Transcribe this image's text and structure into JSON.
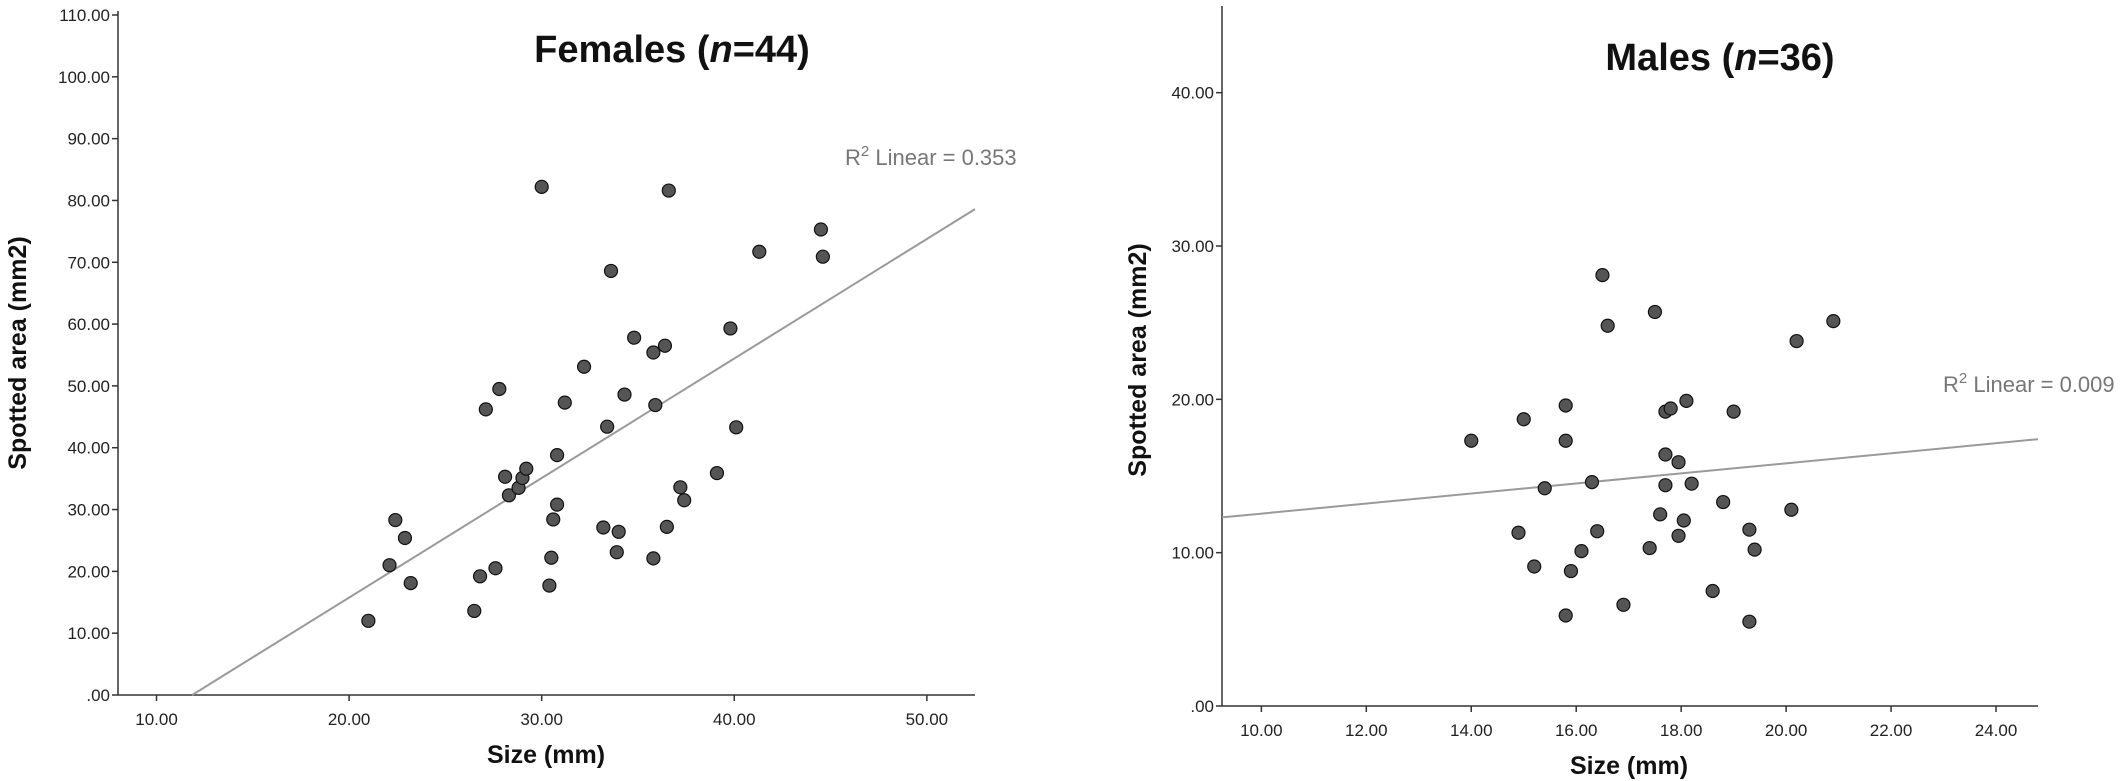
{
  "chart_data": [
    {
      "type": "scatter",
      "title": "Females (n=44)",
      "title_parts": [
        "Females (",
        "n",
        "=44)"
      ],
      "xlabel": "Size (mm)",
      "ylabel": "Spotted area (mm2)",
      "xlim": [
        8,
        52.5
      ],
      "ylim": [
        0,
        110
      ],
      "xticks": [
        10,
        20,
        30,
        40,
        50
      ],
      "xtick_labels": [
        "10.00",
        "20.00",
        "30.00",
        "40.00",
        "50.00"
      ],
      "yticks": [
        0,
        10,
        20,
        30,
        40,
        50,
        60,
        70,
        80,
        90,
        100,
        110
      ],
      "ytick_labels": [
        ".00",
        "10.00",
        "20.00",
        "30.00",
        "40.00",
        "50.00",
        "60.00",
        "70.00",
        "80.00",
        "90.00",
        "100.00",
        "110.00"
      ],
      "grid": false,
      "r2_label": "Linear = 0.353",
      "fit_line": {
        "x": [
          11.85,
          52.5
        ],
        "y": [
          0,
          78.6
        ]
      },
      "points": [
        {
          "x": 21.0,
          "y": 12.0
        },
        {
          "x": 22.1,
          "y": 21.0
        },
        {
          "x": 22.4,
          "y": 28.3
        },
        {
          "x": 22.9,
          "y": 25.4
        },
        {
          "x": 23.2,
          "y": 18.1
        },
        {
          "x": 26.5,
          "y": 13.6
        },
        {
          "x": 26.8,
          "y": 19.2
        },
        {
          "x": 27.1,
          "y": 46.2
        },
        {
          "x": 27.6,
          "y": 20.5
        },
        {
          "x": 27.8,
          "y": 49.5
        },
        {
          "x": 28.1,
          "y": 35.3
        },
        {
          "x": 28.3,
          "y": 32.3
        },
        {
          "x": 28.8,
          "y": 33.5
        },
        {
          "x": 29.0,
          "y": 35.1
        },
        {
          "x": 29.2,
          "y": 36.6
        },
        {
          "x": 30.0,
          "y": 82.2
        },
        {
          "x": 30.4,
          "y": 17.7
        },
        {
          "x": 30.5,
          "y": 22.2
        },
        {
          "x": 30.6,
          "y": 28.4
        },
        {
          "x": 30.8,
          "y": 30.8
        },
        {
          "x": 30.8,
          "y": 38.8
        },
        {
          "x": 31.2,
          "y": 47.3
        },
        {
          "x": 32.2,
          "y": 53.1
        },
        {
          "x": 33.2,
          "y": 27.1
        },
        {
          "x": 33.4,
          "y": 43.4
        },
        {
          "x": 33.6,
          "y": 68.6
        },
        {
          "x": 33.9,
          "y": 23.1
        },
        {
          "x": 34.0,
          "y": 26.4
        },
        {
          "x": 34.3,
          "y": 48.6
        },
        {
          "x": 34.8,
          "y": 57.8
        },
        {
          "x": 35.8,
          "y": 22.1
        },
        {
          "x": 35.8,
          "y": 55.4
        },
        {
          "x": 35.9,
          "y": 46.9
        },
        {
          "x": 36.4,
          "y": 56.5
        },
        {
          "x": 36.5,
          "y": 27.2
        },
        {
          "x": 36.6,
          "y": 81.6
        },
        {
          "x": 37.2,
          "y": 33.6
        },
        {
          "x": 37.4,
          "y": 31.5
        },
        {
          "x": 39.1,
          "y": 35.9
        },
        {
          "x": 39.8,
          "y": 59.3
        },
        {
          "x": 40.1,
          "y": 43.3
        },
        {
          "x": 41.3,
          "y": 71.7
        },
        {
          "x": 44.5,
          "y": 75.3
        },
        {
          "x": 44.6,
          "y": 70.9
        }
      ]
    },
    {
      "type": "scatter",
      "title": "Males (n=36)",
      "title_parts": [
        "Males (",
        "n",
        "=36)"
      ],
      "xlabel": "Size (mm)",
      "ylabel": "Spotted area (mm2)",
      "xlim": [
        9.25,
        24.8
      ],
      "ylim": [
        0,
        45
      ],
      "xticks": [
        10,
        12,
        14,
        16,
        18,
        20,
        22,
        24
      ],
      "xtick_labels": [
        "10.00",
        "12.00",
        "14.00",
        "16.00",
        "18.00",
        "20.00",
        "22.00",
        "24.00"
      ],
      "yticks": [
        0,
        10,
        20,
        30,
        40
      ],
      "ytick_labels": [
        ".00",
        "10.00",
        "20.00",
        "30.00",
        "40.00"
      ],
      "grid": false,
      "r2_label": "Linear = 0.009",
      "fit_line": {
        "x": [
          9.25,
          24.8
        ],
        "y": [
          12.3,
          17.4
        ]
      },
      "points": [
        {
          "x": 14.0,
          "y": 17.3
        },
        {
          "x": 14.9,
          "y": 11.3
        },
        {
          "x": 15.0,
          "y": 18.7
        },
        {
          "x": 15.2,
          "y": 9.1
        },
        {
          "x": 15.4,
          "y": 14.2
        },
        {
          "x": 15.8,
          "y": 5.9
        },
        {
          "x": 15.8,
          "y": 17.3
        },
        {
          "x": 15.8,
          "y": 19.6
        },
        {
          "x": 15.9,
          "y": 8.8
        },
        {
          "x": 16.1,
          "y": 10.1
        },
        {
          "x": 16.3,
          "y": 14.6
        },
        {
          "x": 16.4,
          "y": 11.4
        },
        {
          "x": 16.5,
          "y": 28.1
        },
        {
          "x": 16.6,
          "y": 24.8
        },
        {
          "x": 16.9,
          "y": 6.6
        },
        {
          "x": 17.4,
          "y": 10.3
        },
        {
          "x": 17.5,
          "y": 25.7
        },
        {
          "x": 17.6,
          "y": 12.5
        },
        {
          "x": 17.7,
          "y": 19.2
        },
        {
          "x": 17.7,
          "y": 14.4
        },
        {
          "x": 17.7,
          "y": 16.4
        },
        {
          "x": 17.8,
          "y": 19.4
        },
        {
          "x": 17.95,
          "y": 11.1
        },
        {
          "x": 17.95,
          "y": 15.9
        },
        {
          "x": 18.05,
          "y": 12.1
        },
        {
          "x": 18.1,
          "y": 19.9
        },
        {
          "x": 18.2,
          "y": 14.5
        },
        {
          "x": 18.6,
          "y": 7.5
        },
        {
          "x": 18.8,
          "y": 13.3
        },
        {
          "x": 19.0,
          "y": 19.2
        },
        {
          "x": 19.3,
          "y": 11.5
        },
        {
          "x": 19.3,
          "y": 5.5
        },
        {
          "x": 19.4,
          "y": 10.2
        },
        {
          "x": 20.1,
          "y": 12.8
        },
        {
          "x": 20.2,
          "y": 23.8
        },
        {
          "x": 20.9,
          "y": 25.1
        }
      ]
    }
  ]
}
